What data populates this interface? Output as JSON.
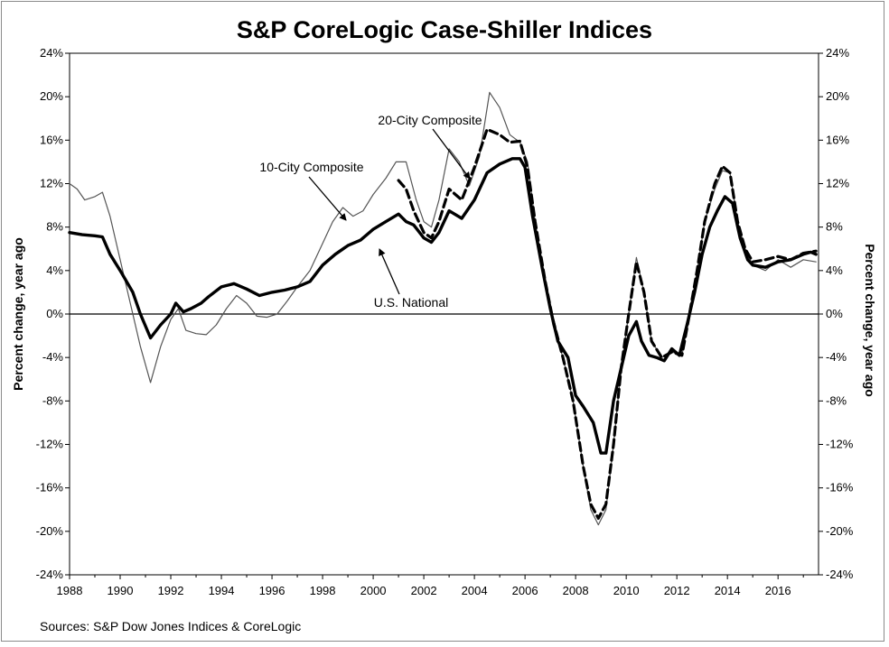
{
  "chart_data": {
    "type": "line",
    "title": "S&P CoreLogic Case-Shiller Indices",
    "ylabel": "Percent change, year ago",
    "y2label": "Percent change, year ago",
    "source": "Sources:  S&P Dow Jones Indices & CoreLogic",
    "xlim": [
      1988,
      2017.6
    ],
    "ylim": [
      -24,
      24
    ],
    "x_ticks": [
      1988,
      1990,
      1992,
      1994,
      1996,
      1998,
      2000,
      2002,
      2004,
      2006,
      2008,
      2010,
      2012,
      2014,
      2016
    ],
    "x_tick_labels": [
      "1988",
      "1990",
      "1992",
      "1994",
      "1996",
      "1998",
      "2000",
      "2002",
      "2004",
      "2006",
      "2008",
      "2010",
      "2012",
      "2014",
      "2016"
    ],
    "y_ticks": [
      24,
      20,
      16,
      12,
      8,
      4,
      0,
      -4,
      -8,
      -12,
      -16,
      -20,
      -24
    ],
    "y_tick_labels": [
      "24%",
      "20%",
      "16%",
      "12%",
      "8%",
      "4%",
      "0%",
      "-4%",
      "-8%",
      "-12%",
      "-16%",
      "-20%",
      "-24%"
    ],
    "annotations": [
      {
        "text": "20-City Composite",
        "target_x": 2003.0,
        "target_y": 12.8
      },
      {
        "text": "10-City Composite",
        "target_x": 1999.4,
        "target_y": 7.5
      },
      {
        "text": "U.S. National",
        "target_x": 2000.6,
        "target_y": 6.5
      }
    ],
    "series": [
      {
        "name": "U.S. National",
        "style": "thick-solid",
        "color": "#000000",
        "points": [
          [
            1988,
            7.5
          ],
          [
            1988.5,
            7.3
          ],
          [
            1989,
            7.2
          ],
          [
            1989.3,
            7.1
          ],
          [
            1989.6,
            5.5
          ],
          [
            1990,
            4.0
          ],
          [
            1990.5,
            2.0
          ],
          [
            1990.8,
            0.0
          ],
          [
            1991.2,
            -2.2
          ],
          [
            1991.6,
            -1.0
          ],
          [
            1992,
            0.0
          ],
          [
            1992.2,
            1.0
          ],
          [
            1992.5,
            0.2
          ],
          [
            1992.8,
            0.5
          ],
          [
            1993.2,
            1.0
          ],
          [
            1993.5,
            1.6
          ],
          [
            1994,
            2.5
          ],
          [
            1994.5,
            2.8
          ],
          [
            1995,
            2.3
          ],
          [
            1995.5,
            1.7
          ],
          [
            1996,
            2.0
          ],
          [
            1996.5,
            2.2
          ],
          [
            1997,
            2.5
          ],
          [
            1997.5,
            3.0
          ],
          [
            1998,
            4.5
          ],
          [
            1998.5,
            5.5
          ],
          [
            1999,
            6.3
          ],
          [
            1999.5,
            6.8
          ],
          [
            2000,
            7.8
          ],
          [
            2000.5,
            8.5
          ],
          [
            2001,
            9.2
          ],
          [
            2001.3,
            8.5
          ],
          [
            2001.6,
            8.2
          ],
          [
            2002,
            7.0
          ],
          [
            2002.3,
            6.6
          ],
          [
            2002.6,
            7.5
          ],
          [
            2003,
            9.5
          ],
          [
            2003.5,
            8.8
          ],
          [
            2004,
            10.5
          ],
          [
            2004.5,
            13.0
          ],
          [
            2005,
            13.8
          ],
          [
            2005.5,
            14.3
          ],
          [
            2005.8,
            14.3
          ],
          [
            2006,
            13.5
          ],
          [
            2006.3,
            9.0
          ],
          [
            2006.7,
            4.0
          ],
          [
            2007,
            0.5
          ],
          [
            2007.3,
            -2.5
          ],
          [
            2007.7,
            -4.0
          ],
          [
            2008,
            -7.5
          ],
          [
            2008.3,
            -8.5
          ],
          [
            2008.7,
            -10.0
          ],
          [
            2009,
            -12.8
          ],
          [
            2009.2,
            -12.8
          ],
          [
            2009.5,
            -8.0
          ],
          [
            2009.8,
            -5.0
          ],
          [
            2010.1,
            -2.0
          ],
          [
            2010.4,
            -0.7
          ],
          [
            2010.6,
            -2.5
          ],
          [
            2010.9,
            -3.8
          ],
          [
            2011.2,
            -4.0
          ],
          [
            2011.5,
            -4.3
          ],
          [
            2011.8,
            -3.2
          ],
          [
            2012.1,
            -3.8
          ],
          [
            2012.4,
            -1.0
          ],
          [
            2012.7,
            2.0
          ],
          [
            2013,
            5.5
          ],
          [
            2013.3,
            8.0
          ],
          [
            2013.6,
            9.5
          ],
          [
            2013.9,
            10.8
          ],
          [
            2014.2,
            10.2
          ],
          [
            2014.5,
            7.0
          ],
          [
            2014.8,
            5.0
          ],
          [
            2015,
            4.5
          ],
          [
            2015.5,
            4.3
          ],
          [
            2016,
            4.8
          ],
          [
            2016.5,
            5.0
          ],
          [
            2017,
            5.5
          ],
          [
            2017.3,
            5.7
          ],
          [
            2017.5,
            5.5
          ]
        ]
      },
      {
        "name": "10-City Composite",
        "style": "thin-solid",
        "color": "#555555",
        "points": [
          [
            1988,
            12.0
          ],
          [
            1988.3,
            11.5
          ],
          [
            1988.6,
            10.5
          ],
          [
            1989,
            10.8
          ],
          [
            1989.3,
            11.2
          ],
          [
            1989.6,
            9.0
          ],
          [
            1990,
            5.0
          ],
          [
            1990.4,
            1.0
          ],
          [
            1990.8,
            -3.0
          ],
          [
            1991.2,
            -6.3
          ],
          [
            1991.6,
            -3.0
          ],
          [
            1992,
            -0.5
          ],
          [
            1992.3,
            0.5
          ],
          [
            1992.6,
            -1.5
          ],
          [
            1993,
            -1.8
          ],
          [
            1993.4,
            -1.9
          ],
          [
            1993.8,
            -1.0
          ],
          [
            1994.2,
            0.5
          ],
          [
            1994.6,
            1.7
          ],
          [
            1995,
            1.0
          ],
          [
            1995.4,
            -0.2
          ],
          [
            1995.8,
            -0.3
          ],
          [
            1996.2,
            0.0
          ],
          [
            1996.6,
            1.2
          ],
          [
            1997,
            2.5
          ],
          [
            1997.5,
            4.0
          ],
          [
            1998,
            6.5
          ],
          [
            1998.4,
            8.5
          ],
          [
            1998.8,
            9.8
          ],
          [
            1999.2,
            9.0
          ],
          [
            1999.6,
            9.5
          ],
          [
            2000,
            11.0
          ],
          [
            2000.5,
            12.5
          ],
          [
            2000.9,
            14.0
          ],
          [
            2001.3,
            14.0
          ],
          [
            2001.7,
            10.5
          ],
          [
            2002,
            8.5
          ],
          [
            2002.3,
            8.0
          ],
          [
            2002.6,
            10.5
          ],
          [
            2003,
            15.2
          ],
          [
            2003.4,
            14.0
          ],
          [
            2003.8,
            11.8
          ],
          [
            2004.2,
            14.5
          ],
          [
            2004.6,
            20.4
          ],
          [
            2005,
            19.0
          ],
          [
            2005.4,
            16.5
          ],
          [
            2005.8,
            15.8
          ],
          [
            2006.1,
            14.0
          ],
          [
            2006.4,
            8.5
          ],
          [
            2006.8,
            3.0
          ],
          [
            2007.1,
            -1.0
          ],
          [
            2007.5,
            -4.0
          ],
          [
            2007.9,
            -8.0
          ],
          [
            2008.3,
            -14.0
          ],
          [
            2008.6,
            -18.0
          ],
          [
            2008.9,
            -19.4
          ],
          [
            2009.2,
            -18.0
          ],
          [
            2009.5,
            -12.0
          ],
          [
            2009.8,
            -5.0
          ],
          [
            2010.1,
            0.0
          ],
          [
            2010.4,
            5.2
          ],
          [
            2010.7,
            2.0
          ],
          [
            2011,
            -2.5
          ],
          [
            2011.4,
            -4.0
          ],
          [
            2011.8,
            -3.5
          ],
          [
            2012.2,
            -3.8
          ],
          [
            2012.5,
            0.0
          ],
          [
            2012.8,
            4.0
          ],
          [
            2013.1,
            8.5
          ],
          [
            2013.5,
            11.5
          ],
          [
            2013.8,
            13.2
          ],
          [
            2014.1,
            13.0
          ],
          [
            2014.4,
            8.5
          ],
          [
            2014.7,
            6.0
          ],
          [
            2015,
            4.5
          ],
          [
            2015.5,
            4.0
          ],
          [
            2016,
            5.0
          ],
          [
            2016.5,
            4.3
          ],
          [
            2017,
            5.0
          ],
          [
            2017.5,
            4.8
          ]
        ]
      },
      {
        "name": "20-City Composite",
        "style": "thick-dashed",
        "color": "#000000",
        "points": [
          [
            2001,
            12.3
          ],
          [
            2001.3,
            11.5
          ],
          [
            2001.6,
            9.5
          ],
          [
            2002,
            7.5
          ],
          [
            2002.3,
            7.0
          ],
          [
            2002.6,
            8.5
          ],
          [
            2003,
            11.5
          ],
          [
            2003.5,
            10.5
          ],
          [
            2004,
            13.5
          ],
          [
            2004.5,
            17.0
          ],
          [
            2005,
            16.5
          ],
          [
            2005.4,
            15.8
          ],
          [
            2005.8,
            15.9
          ],
          [
            2006.1,
            13.5
          ],
          [
            2006.4,
            8.5
          ],
          [
            2006.8,
            3.0
          ],
          [
            2007.1,
            -0.5
          ],
          [
            2007.5,
            -4.0
          ],
          [
            2007.9,
            -8.0
          ],
          [
            2008.3,
            -14.0
          ],
          [
            2008.6,
            -17.5
          ],
          [
            2008.9,
            -18.8
          ],
          [
            2009.2,
            -17.5
          ],
          [
            2009.5,
            -12.0
          ],
          [
            2009.8,
            -5.0
          ],
          [
            2010.1,
            0.0
          ],
          [
            2010.4,
            4.8
          ],
          [
            2010.7,
            2.0
          ],
          [
            2011,
            -2.5
          ],
          [
            2011.4,
            -4.0
          ],
          [
            2011.8,
            -3.5
          ],
          [
            2012.2,
            -3.8
          ],
          [
            2012.5,
            0.0
          ],
          [
            2012.8,
            4.0
          ],
          [
            2013.1,
            8.5
          ],
          [
            2013.5,
            12.0
          ],
          [
            2013.8,
            13.6
          ],
          [
            2014.1,
            13.0
          ],
          [
            2014.4,
            8.5
          ],
          [
            2014.7,
            6.0
          ],
          [
            2015,
            4.8
          ],
          [
            2015.5,
            5.0
          ],
          [
            2016,
            5.3
          ],
          [
            2016.5,
            5.0
          ],
          [
            2017,
            5.6
          ],
          [
            2017.5,
            5.8
          ]
        ]
      }
    ]
  }
}
